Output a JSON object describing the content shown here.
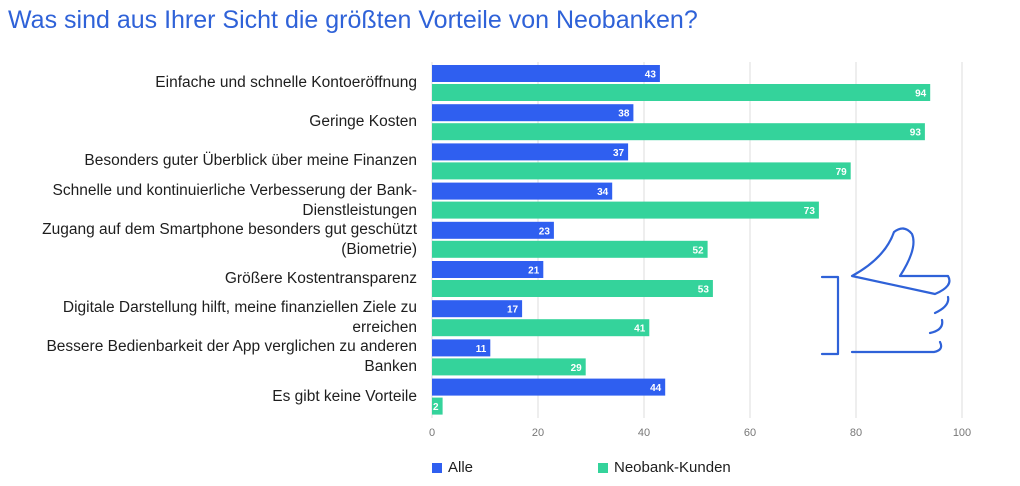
{
  "title": "Was sind aus Ihrer Sicht die größten Vorteile von Neobanken?",
  "colors": {
    "alle": "#2f5ff0",
    "neobank": "#34d39b",
    "grid": "#dcdcdc",
    "axis_text": "#777777",
    "thumb": "#2f62d8"
  },
  "legend": {
    "alle": "Alle",
    "neobank": "Neobank-Kunden"
  },
  "thumb_icon": "thumbs-up-icon",
  "chart_data": {
    "type": "bar",
    "orientation": "horizontal",
    "title": "Was sind aus Ihrer Sicht die größten Vorteile von Neobanken?",
    "categories": [
      [
        "Einfache und schnelle Kontoeröffnung"
      ],
      [
        "Geringe Kosten"
      ],
      [
        "Besonders guter Überblick über meine Finanzen"
      ],
      [
        "Schnelle und kontinuierliche Verbesserung der Bank-",
        "Dienstleistungen"
      ],
      [
        "Zugang auf dem Smartphone besonders gut geschützt",
        "(Biometrie)"
      ],
      [
        "Größere Kostentransparenz"
      ],
      [
        "Digitale Darstellung hilft, meine finanziellen Ziele zu",
        "erreichen"
      ],
      [
        "Bessere Bedienbarkeit der App verglichen zu anderen",
        "Banken"
      ],
      [
        "Es gibt keine Vorteile"
      ]
    ],
    "series": [
      {
        "name": "Alle",
        "values": [
          43,
          38,
          37,
          34,
          23,
          21,
          17,
          11,
          44
        ]
      },
      {
        "name": "Neobank-Kunden",
        "values": [
          94,
          93,
          79,
          73,
          52,
          53,
          41,
          29,
          2
        ]
      }
    ],
    "xlim": [
      0,
      100
    ],
    "xticks": [
      0,
      20,
      40,
      60,
      80,
      100
    ],
    "grid": true,
    "legend_position": "bottom"
  }
}
